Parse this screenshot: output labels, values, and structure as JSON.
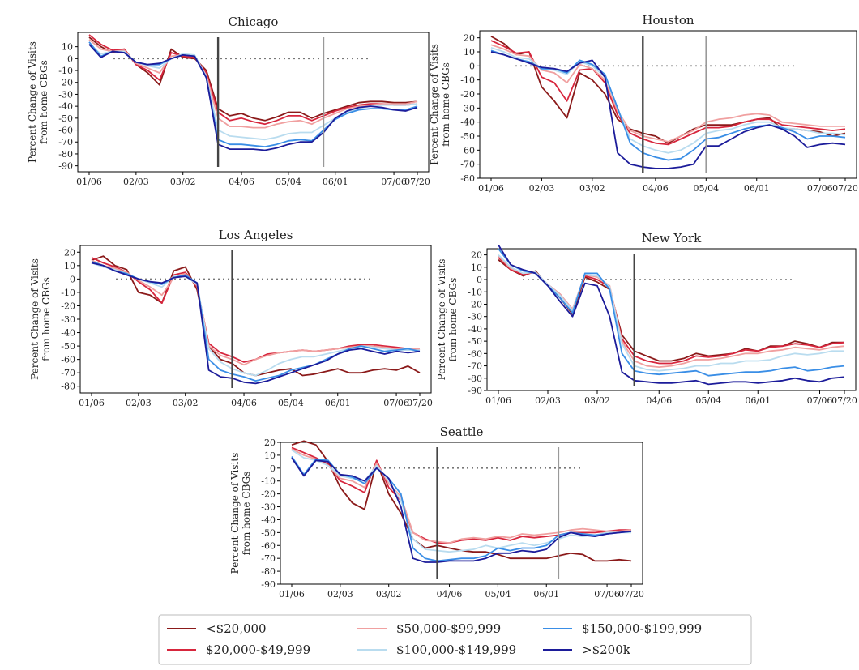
{
  "chart_data": {
    "type": "line",
    "ylabel": [
      "Percent Change of Visits",
      "from home CBGs"
    ],
    "x_tick_labels": [
      "01/06",
      "02/03",
      "03/02",
      "04/06",
      "05/04",
      "06/01",
      "07/06",
      "07/20"
    ],
    "legend": {
      "placement": "bottom",
      "entries": [
        {
          "name": "<$20,000",
          "color": "#8b1a1a"
        },
        {
          "name": "$20,000-$49,999",
          "color": "#d7263d"
        },
        {
          "name": "$50,000-$99,999",
          "color": "#f0a0a0"
        },
        {
          "name": "$100,000-$149,999",
          "color": "#b9dcef"
        },
        {
          "name": "$150,000-$199,999",
          "color": "#3a8ee6"
        },
        {
          "name": ">$200k",
          "color": "#1c1c9a"
        }
      ]
    },
    "panels": [
      {
        "title": "Chicago",
        "ylim": [
          -95,
          22
        ],
        "yticks": [
          10,
          0,
          -10,
          -20,
          -30,
          -40,
          -50,
          -60,
          -70,
          -80,
          -90
        ],
        "vlines": [
          {
            "week": 11,
            "color": "#444444"
          },
          {
            "week": 20,
            "color": "#999999"
          }
        ],
        "series": [
          [
            18,
            10,
            5,
            8,
            -5,
            -12,
            -22,
            8,
            1,
            0,
            -10,
            -42,
            -48,
            -46,
            -50,
            -52,
            -49,
            -45,
            -45,
            -50,
            -46,
            -43,
            -40,
            -37,
            -36,
            -36,
            -37,
            -37,
            -36
          ],
          [
            20,
            12,
            7,
            8,
            -5,
            -10,
            -18,
            5,
            2,
            1,
            -12,
            -45,
            -52,
            -50,
            -53,
            -55,
            -52,
            -48,
            -48,
            -52,
            -48,
            -44,
            -41,
            -39,
            -38,
            -38,
            -39,
            -39,
            -38
          ],
          [
            16,
            8,
            6,
            7,
            -4,
            -8,
            -12,
            2,
            3,
            2,
            -14,
            -50,
            -57,
            -57,
            -58,
            -58,
            -55,
            -53,
            -52,
            -55,
            -50,
            -46,
            -42,
            -40,
            -39,
            -38,
            -38,
            -38,
            -36
          ],
          [
            12,
            4,
            6,
            6,
            -3,
            -6,
            -8,
            0,
            4,
            3,
            -15,
            -60,
            -65,
            -66,
            -67,
            -68,
            -66,
            -63,
            -62,
            -62,
            -56,
            -50,
            -45,
            -42,
            -40,
            -39,
            -39,
            -39,
            -38
          ],
          [
            14,
            2,
            6,
            5,
            -3,
            -5,
            -5,
            0,
            3,
            2,
            -16,
            -68,
            -72,
            -72,
            -73,
            -74,
            -72,
            -69,
            -68,
            -69,
            -60,
            -51,
            -46,
            -43,
            -42,
            -42,
            -43,
            -43,
            -40
          ],
          [
            12,
            1,
            6,
            5,
            -3,
            -5,
            -4,
            0,
            3,
            2,
            -16,
            -72,
            -76,
            -76,
            -76,
            -77,
            -75,
            -72,
            -70,
            -70,
            -62,
            -50,
            -44,
            -41,
            -40,
            -41,
            -43,
            -44,
            -41
          ]
        ]
      },
      {
        "title": "Houston",
        "ylim": [
          -80,
          25
        ],
        "yticks": [
          20,
          10,
          0,
          -10,
          -20,
          -30,
          -40,
          -50,
          -60,
          -70,
          -80
        ],
        "vlines": [
          {
            "week": 12,
            "color": "#444444"
          },
          {
            "week": 17,
            "color": "#999999"
          }
        ],
        "series": [
          [
            21,
            16,
            8,
            10,
            -15,
            -25,
            -37,
            -5,
            -10,
            -20,
            -38,
            -45,
            -48,
            -50,
            -55,
            -50,
            -45,
            -42,
            -42,
            -42,
            -40,
            -38,
            -37,
            -45,
            -45,
            -46,
            -47,
            -50,
            -48
          ],
          [
            18,
            14,
            9,
            10,
            -8,
            -12,
            -25,
            -3,
            -2,
            -12,
            -35,
            -48,
            -52,
            -55,
            -56,
            -52,
            -48,
            -44,
            -44,
            -43,
            -40,
            -38,
            -38,
            -42,
            -43,
            -44,
            -45,
            -46,
            -45
          ],
          [
            15,
            12,
            8,
            7,
            -3,
            -5,
            -12,
            1,
            -2,
            -10,
            -32,
            -46,
            -50,
            -52,
            -54,
            -50,
            -46,
            -40,
            -38,
            -37,
            -35,
            -34,
            -35,
            -40,
            -41,
            -42,
            -43,
            -43,
            -43
          ],
          [
            13,
            10,
            6,
            5,
            -2,
            -3,
            -6,
            3,
            0,
            -8,
            -30,
            -52,
            -57,
            -60,
            -62,
            -60,
            -55,
            -48,
            -46,
            -45,
            -42,
            -40,
            -40,
            -44,
            -45,
            -46,
            -48,
            -48,
            -49
          ],
          [
            11,
            8,
            5,
            3,
            -2,
            -2,
            -5,
            4,
            1,
            -6,
            -30,
            -55,
            -62,
            -65,
            -67,
            -66,
            -60,
            -52,
            -51,
            -48,
            -45,
            -43,
            -42,
            -44,
            -47,
            -52,
            -50,
            -50,
            -51
          ],
          [
            10,
            8,
            5,
            2,
            -1,
            -2,
            -4,
            2,
            4,
            -8,
            -62,
            -70,
            -72,
            -73,
            -73,
            -72,
            -70,
            -57,
            -57,
            -52,
            -47,
            -44,
            -42,
            -45,
            -50,
            -58,
            -56,
            -55,
            -56
          ]
        ]
      },
      {
        "title": "Los Angeles",
        "ylim": [
          -85,
          25
        ],
        "yticks": [
          20,
          10,
          0,
          -10,
          -20,
          -30,
          -40,
          -50,
          -60,
          -70,
          -80
        ],
        "vlines": [
          {
            "week": 12,
            "color": "#444444"
          }
        ],
        "series": [
          [
            14,
            17,
            10,
            7,
            -10,
            -12,
            -18,
            6,
            9,
            -8,
            -50,
            -60,
            -63,
            -70,
            -72,
            -70,
            -68,
            -67,
            -72,
            -71,
            -69,
            -67,
            -70,
            -70,
            -68,
            -67,
            -68,
            -65,
            -70
          ],
          [
            16,
            12,
            9,
            5,
            -2,
            -8,
            -18,
            3,
            5,
            -6,
            -48,
            -55,
            -58,
            -62,
            -60,
            -56,
            -55,
            -54,
            -53,
            -54,
            -53,
            -52,
            -50,
            -49,
            -49,
            -50,
            -51,
            -52,
            -53
          ],
          [
            14,
            10,
            8,
            5,
            -1,
            -6,
            -12,
            1,
            4,
            -5,
            -50,
            -57,
            -60,
            -64,
            -60,
            -57,
            -55,
            -54,
            -53,
            -54,
            -53,
            -52,
            -51,
            -50,
            -50,
            -51,
            -52,
            -52,
            -52
          ],
          [
            12,
            9,
            7,
            4,
            0,
            -3,
            -6,
            2,
            2,
            -4,
            -52,
            -62,
            -67,
            -70,
            -72,
            -68,
            -63,
            -60,
            -58,
            -58,
            -56,
            -54,
            -52,
            -50,
            -51,
            -52,
            -53,
            -53,
            -53
          ],
          [
            13,
            10,
            6,
            4,
            0,
            -2,
            -4,
            1,
            3,
            -3,
            -60,
            -68,
            -71,
            -73,
            -76,
            -74,
            -72,
            -68,
            -66,
            -64,
            -60,
            -56,
            -52,
            -50,
            -52,
            -54,
            -53,
            -52,
            -54
          ],
          [
            12,
            10,
            6,
            3,
            0,
            -2,
            -3,
            1,
            2,
            -3,
            -68,
            -73,
            -74,
            -77,
            -78,
            -76,
            -73,
            -70,
            -67,
            -64,
            -61,
            -56,
            -53,
            -52,
            -54,
            -56,
            -54,
            -55,
            -54
          ]
        ]
      },
      {
        "title": "New York",
        "ylim": [
          -90,
          25
        ],
        "yticks": [
          20,
          10,
          0,
          -10,
          -20,
          -30,
          -40,
          -50,
          -60,
          -70,
          -80,
          -90
        ],
        "vlines": [
          {
            "week": 11,
            "color": "#444444"
          }
        ],
        "series": [
          [
            16,
            8,
            3,
            7,
            -5,
            -15,
            -28,
            2,
            -2,
            -8,
            -45,
            -58,
            -62,
            -66,
            -66,
            -64,
            -60,
            -62,
            -61,
            -60,
            -56,
            -58,
            -54,
            -54,
            -50,
            -52,
            -55,
            -51,
            -51
          ],
          [
            18,
            8,
            4,
            6,
            -4,
            -12,
            -25,
            3,
            0,
            -6,
            -48,
            -62,
            -66,
            -68,
            -68,
            -66,
            -62,
            -63,
            -62,
            -60,
            -57,
            -58,
            -55,
            -54,
            -52,
            -53,
            -55,
            -52,
            -51
          ],
          [
            19,
            9,
            5,
            6,
            -4,
            -12,
            -24,
            4,
            2,
            -5,
            -50,
            -66,
            -70,
            -71,
            -70,
            -68,
            -65,
            -65,
            -64,
            -62,
            -60,
            -60,
            -58,
            -57,
            -55,
            -56,
            -57,
            -55,
            -54
          ],
          [
            20,
            10,
            5,
            6,
            -4,
            -13,
            -25,
            4,
            3,
            -6,
            -52,
            -70,
            -73,
            -74,
            -73,
            -72,
            -70,
            -70,
            -68,
            -68,
            -66,
            -66,
            -65,
            -62,
            -60,
            -61,
            -60,
            -58,
            -58
          ],
          [
            25,
            12,
            7,
            5,
            -5,
            -15,
            -27,
            5,
            5,
            -8,
            -60,
            -74,
            -76,
            -77,
            -76,
            -75,
            -74,
            -78,
            -77,
            -76,
            -75,
            -75,
            -74,
            -72,
            -71,
            -74,
            -73,
            -71,
            -70
          ],
          [
            28,
            12,
            8,
            5,
            -5,
            -18,
            -30,
            -3,
            -5,
            -30,
            -75,
            -82,
            -83,
            -84,
            -84,
            -83,
            -82,
            -85,
            -84,
            -83,
            -83,
            -84,
            -83,
            -82,
            -80,
            -82,
            -83,
            -80,
            -79
          ]
        ]
      },
      {
        "title": "Seattle",
        "ylim": [
          -90,
          20
        ],
        "yticks": [
          20,
          10,
          0,
          -10,
          -20,
          -30,
          -40,
          -50,
          -60,
          -70,
          -80,
          -90
        ],
        "vlines": [
          {
            "week": 12,
            "color": "#444444"
          },
          {
            "week": 22,
            "color": "#999999"
          }
        ],
        "series": [
          [
            18,
            21,
            18,
            5,
            -15,
            -27,
            -32,
            5,
            -20,
            -35,
            -55,
            -62,
            -60,
            -62,
            -64,
            -65,
            -65,
            -67,
            -70,
            -70,
            -70,
            -70,
            -68,
            -66,
            -67,
            -72,
            -72,
            -71,
            -72
          ],
          [
            16,
            12,
            8,
            3,
            -10,
            -14,
            -19,
            6,
            -15,
            -25,
            -50,
            -55,
            -58,
            -58,
            -56,
            -55,
            -56,
            -54,
            -56,
            -53,
            -54,
            -53,
            -52,
            -50,
            -50,
            -50,
            -49,
            -48,
            -48
          ],
          [
            15,
            10,
            7,
            2,
            -8,
            -10,
            -15,
            4,
            -12,
            -22,
            -50,
            -56,
            -57,
            -58,
            -55,
            -54,
            -55,
            -53,
            -54,
            -51,
            -52,
            -51,
            -50,
            -48,
            -47,
            -48,
            -49,
            -49,
            -48
          ],
          [
            14,
            8,
            6,
            2,
            -6,
            -8,
            -10,
            2,
            -10,
            -25,
            -55,
            -63,
            -64,
            -65,
            -64,
            -63,
            -60,
            -62,
            -60,
            -58,
            -60,
            -58,
            -55,
            -52,
            -53,
            -52,
            -50,
            -50,
            -50
          ],
          [
            9,
            -5,
            7,
            6,
            -5,
            -7,
            -12,
            0,
            -8,
            -20,
            -62,
            -70,
            -72,
            -71,
            -70,
            -70,
            -68,
            -62,
            -64,
            -62,
            -62,
            -60,
            -52,
            -50,
            -51,
            -52,
            -51,
            -50,
            -49
          ],
          [
            8,
            -6,
            6,
            5,
            -5,
            -6,
            -10,
            0,
            -8,
            -30,
            -70,
            -73,
            -73,
            -72,
            -72,
            -72,
            -70,
            -66,
            -66,
            -64,
            -65,
            -63,
            -54,
            -50,
            -52,
            -53,
            -51,
            -50,
            -49
          ]
        ]
      }
    ]
  }
}
